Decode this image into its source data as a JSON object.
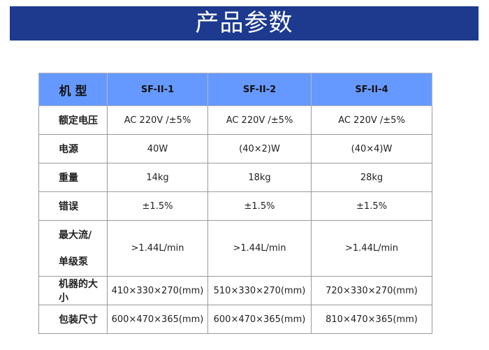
{
  "title": "产品参数",
  "colors": {
    "banner": "#1d3a8f",
    "header": "#6699ff"
  },
  "table": {
    "header": [
      "机 型",
      "SF-II-1",
      "SF-II-2",
      "SF-II-4"
    ],
    "rows": [
      {
        "label": "额定电压",
        "values": [
          "AC 220V /±5%",
          "AC 220V /±5%",
          "AC 220V /±5%"
        ]
      },
      {
        "label": "电源",
        "values": [
          "40W",
          "(40×2)W",
          "(40×4)W"
        ]
      },
      {
        "label": "重量",
        "values": [
          "14kg",
          "18kg",
          "28kg"
        ]
      },
      {
        "label": "错误",
        "values": [
          "±1.5%",
          "±1.5%",
          "±1.5%"
        ]
      },
      {
        "label_lines": [
          "最大流/",
          "单级泵"
        ],
        "values": [
          ">1.44L/min",
          ">1.44L/min",
          ">1.44L/min"
        ]
      },
      {
        "label": "机器的大小",
        "values": [
          "410×330×270(mm)",
          "510×330×270(mm)",
          "720×330×270(mm)"
        ]
      },
      {
        "label": "包装尺寸",
        "values": [
          "600×470×365(mm)",
          "600×470×365(mm)",
          "810×470×365(mm)"
        ]
      }
    ]
  }
}
